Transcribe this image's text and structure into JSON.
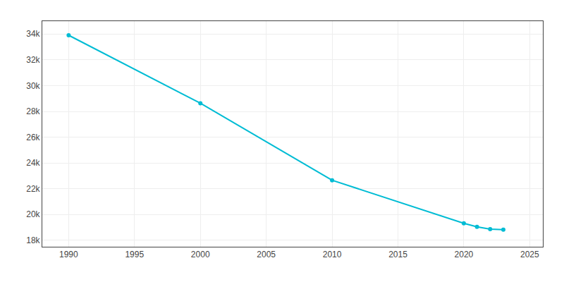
{
  "chart_data": {
    "type": "line",
    "x": [
      1990,
      2000,
      2010,
      2020,
      2021,
      2022,
      2023
    ],
    "values": [
      33906,
      28633,
      22659,
      19319,
      19050,
      18862,
      18826
    ],
    "color": "#00bcd4",
    "marker": "circle",
    "xlim": [
      1988,
      2026
    ],
    "ylim": [
      17500,
      35000
    ],
    "xticks": [
      1990,
      1995,
      2000,
      2005,
      2010,
      2015,
      2020,
      2025
    ],
    "yticks": [
      {
        "value": 18000,
        "label": "18k"
      },
      {
        "value": 20000,
        "label": "20k"
      },
      {
        "value": 22000,
        "label": "22k"
      },
      {
        "value": 24000,
        "label": "24k"
      },
      {
        "value": 26000,
        "label": "26k"
      },
      {
        "value": 28000,
        "label": "28k"
      },
      {
        "value": 30000,
        "label": "30k"
      },
      {
        "value": 32000,
        "label": "32k"
      },
      {
        "value": 34000,
        "label": "34k"
      }
    ],
    "grid": true
  }
}
